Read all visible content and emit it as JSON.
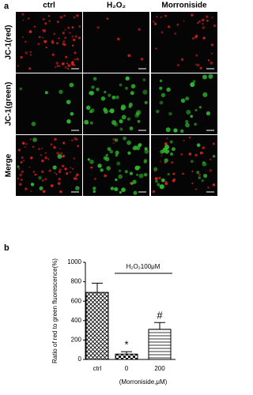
{
  "panel_a": {
    "label": "a",
    "columns": [
      "ctrl",
      "H₂O₂",
      "Morroniside"
    ],
    "rows": [
      "JC-1(red)",
      "JC-1(green)",
      "Merge"
    ]
  },
  "chart_data": {
    "type": "bar",
    "label": "b",
    "ylabel": "Ratio of red to green fluorescence(%)",
    "categories": [
      "ctrl",
      "0",
      "200"
    ],
    "values": [
      690,
      55,
      310
    ],
    "errors": [
      95,
      25,
      70
    ],
    "markers": [
      null,
      "*",
      "#"
    ],
    "treatment_label": "H₂O₂100μM",
    "xlabel": "(Morroniside,μM)",
    "ylim": [
      0,
      1000
    ],
    "yticks": [
      0,
      200,
      400,
      600,
      800,
      1000
    ],
    "color": "#000000"
  }
}
